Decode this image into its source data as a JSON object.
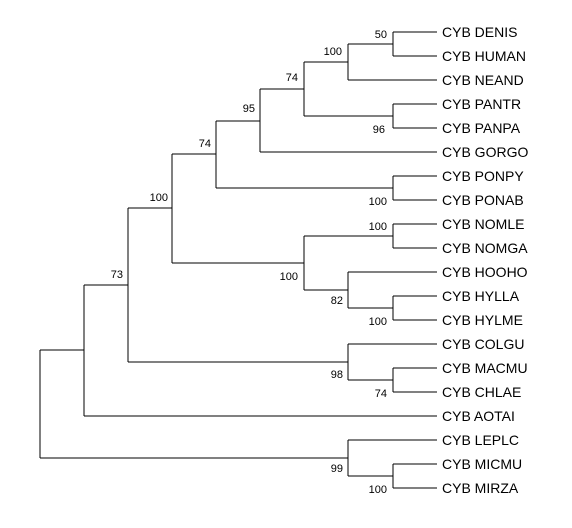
{
  "tree": {
    "taxa": [
      "CYB DENIS",
      "CYB HUMAN",
      "CYB NEAND",
      "CYB PANTR",
      "CYB PANPA",
      "CYB GORGO",
      "CYB PONPY",
      "CYB PONAB",
      "CYB NOMLE",
      "CYB NOMGA",
      "CYB HOOHO",
      "CYB HYLLA",
      "CYB HYLME",
      "CYB COLGU",
      "CYB MACMU",
      "CYB CHLAE",
      "CYB AOTAI",
      "CYB LEPLC",
      "CYB MICMU",
      "CYB MIRZA"
    ],
    "support_values": [
      "50",
      "100",
      "74",
      "96",
      "95",
      "74",
      "100",
      "100",
      "100",
      "100",
      "82",
      "100",
      "98",
      "74",
      "73",
      "99",
      "100"
    ]
  }
}
